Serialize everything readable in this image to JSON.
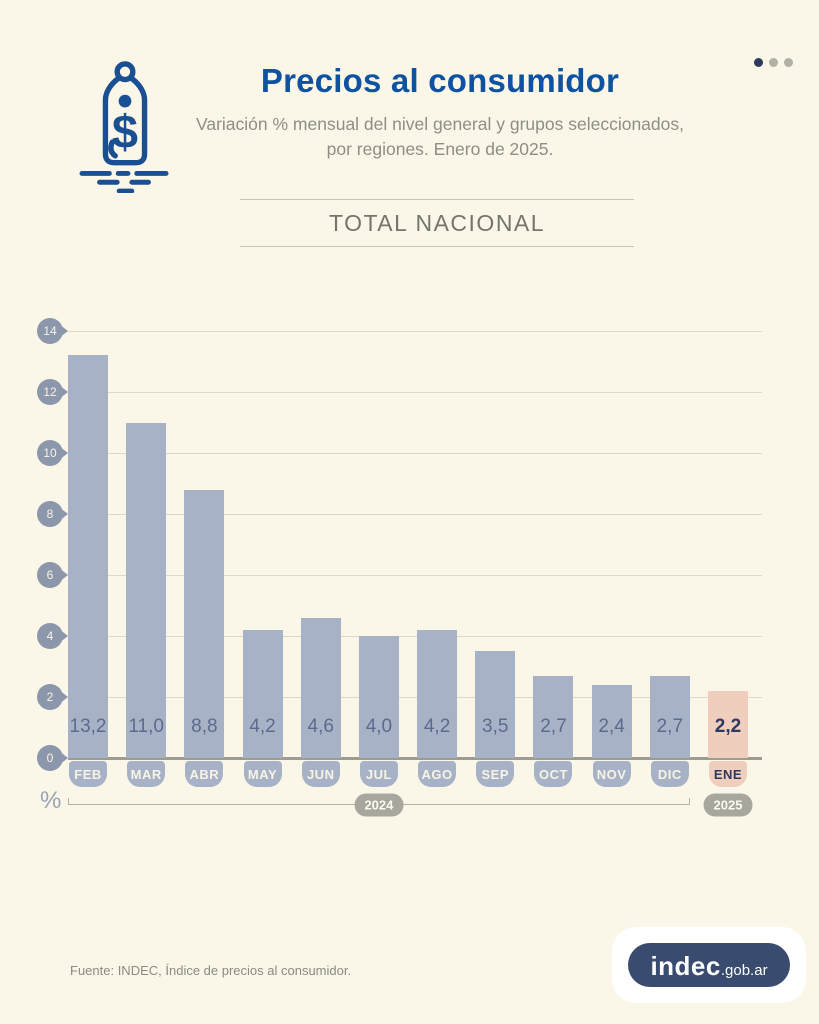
{
  "page": {
    "background": "#FAF7E8"
  },
  "header": {
    "title": "Precios al consumidor",
    "subtitle_line1": "Variación % mensual del nivel general y grupos seleccionados,",
    "subtitle_line2": "por regiones. Enero de 2025.",
    "pagination": {
      "dot_count": 3,
      "active_index": 0
    },
    "icon": "price-tag-dollar-icon"
  },
  "section": {
    "title": "TOTAL NACIONAL"
  },
  "chart_data": {
    "type": "bar",
    "title": "TOTAL NACIONAL",
    "unit": "%",
    "categories": [
      "FEB",
      "MAR",
      "ABR",
      "MAY",
      "JUN",
      "JUL",
      "AGO",
      "SEP",
      "OCT",
      "NOV",
      "DIC",
      "ENE"
    ],
    "values": [
      13.2,
      11.0,
      8.8,
      4.2,
      4.6,
      4.0,
      4.2,
      3.5,
      2.7,
      2.4,
      2.7,
      2.2
    ],
    "value_labels": [
      "13,2",
      "11,0",
      "8,8",
      "4,2",
      "4,6",
      "4,0",
      "4,2",
      "3,5",
      "2,7",
      "2,4",
      "2,7",
      "2,2"
    ],
    "highlight_index": 11,
    "y_ticks": [
      14,
      12,
      10,
      8,
      6,
      4,
      2,
      0
    ],
    "ylim": [
      0,
      14
    ],
    "grid": true,
    "year_groups": [
      {
        "label": "2024",
        "from": 0,
        "to": 10
      },
      {
        "label": "2025",
        "from": 11,
        "to": 11
      }
    ],
    "colors": {
      "bar": "#A8B2C6",
      "highlight_bar": "#EFCEBE",
      "value_text": "#5A6B8E",
      "highlight_value_text": "#2D3A5E",
      "axis_pin": "#8D97AB",
      "year_pill": "#A7A79E",
      "gridline": "#DDD9C7",
      "baseline": "#9C9C92"
    }
  },
  "footer": {
    "source": "Fuente: INDEC, Índice de precios al consumidor.",
    "logo_main": "indec",
    "logo_suffix": ".gob.ar"
  }
}
